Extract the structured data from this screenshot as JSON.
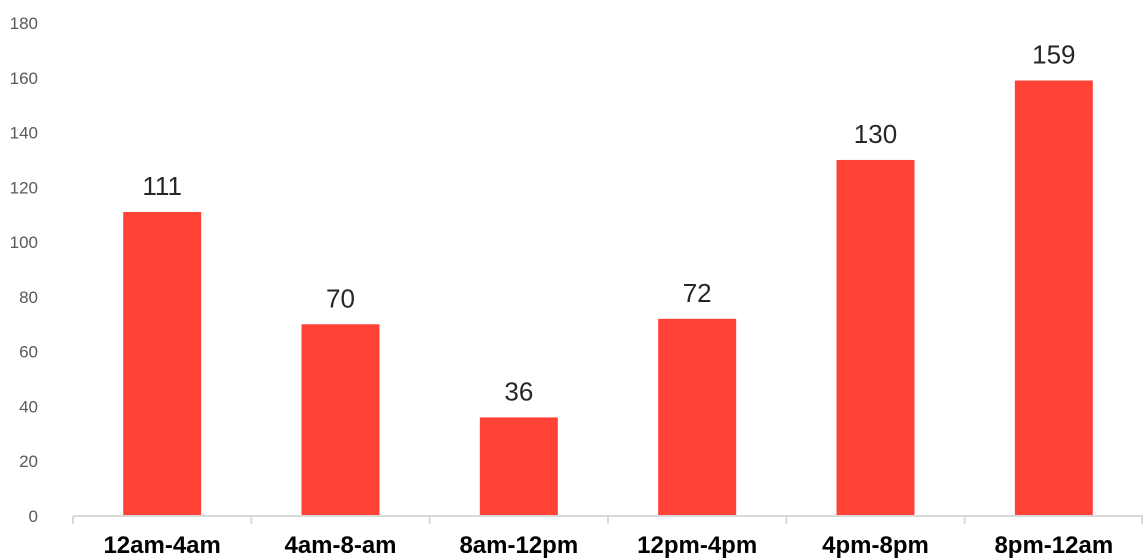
{
  "chart_data": {
    "type": "bar",
    "categories": [
      "12am-4am",
      "4am-8-am",
      "8am-12pm",
      "12pm-4pm",
      "4pm-8pm",
      "8pm-12am"
    ],
    "values": [
      111,
      70,
      36,
      72,
      130,
      159
    ],
    "data_labels": [
      "111",
      "70",
      "36",
      "72",
      "130",
      "159"
    ],
    "title": "",
    "xlabel": "",
    "ylabel": "",
    "ylim": [
      0,
      180
    ],
    "y_ticks": [
      0,
      20,
      40,
      60,
      80,
      100,
      120,
      140,
      160,
      180
    ],
    "y_tick_labels": [
      "0",
      "20",
      "40",
      "60",
      "80",
      "100",
      "120",
      "140",
      "160",
      "180"
    ],
    "grid": false,
    "legend": "none"
  },
  "colors": {
    "bar": "#ff4136",
    "axis": "#d9d9d9",
    "tick_text": "#595959",
    "category_text": "#000000",
    "value_text": "#262626"
  }
}
